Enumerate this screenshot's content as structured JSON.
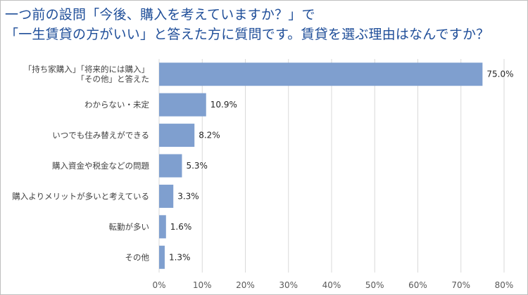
{
  "title": {
    "line1": "一つ前の設問「今後、購入を考えていますか？」で",
    "line2": "「一生賃貸の方がいい」と答えた方に質問です。賃貸を選ぶ理由はなんですか？"
  },
  "colors": {
    "title": "#1f4e99",
    "bar": "#7f9fcf",
    "gridline": "#d9d9d9"
  },
  "chart_data": {
    "type": "bar",
    "orientation": "horizontal",
    "title": "一つ前の設問「今後、購入を考えていますか？」で「一生賃貸の方がいい」と答えた方に質問です。賃貸を選ぶ理由はなんですか？",
    "categories": [
      [
        "「持ち家購入」「将来的には購入」",
        "「その他」と答えた"
      ],
      [
        "わからない・未定"
      ],
      [
        "いつでも住み替えができる"
      ],
      [
        "購入資金や税金などの問題"
      ],
      [
        "購入よりメリットが多いと考えている"
      ],
      [
        "転勤が多い"
      ],
      [
        "その他"
      ]
    ],
    "values": [
      75.0,
      10.9,
      8.2,
      5.3,
      3.3,
      1.6,
      1.3
    ],
    "value_labels": [
      "75.0%",
      "10.9%",
      "8.2%",
      "5.3%",
      "3.3%",
      "1.6%",
      "1.3%"
    ],
    "xlim": [
      0,
      80
    ],
    "x_ticks": [
      0,
      10,
      20,
      30,
      40,
      50,
      60,
      70,
      80
    ],
    "x_tick_labels": [
      "0%",
      "10%",
      "20%",
      "30%",
      "40%",
      "50%",
      "60%",
      "70%",
      "80%"
    ],
    "grid": true,
    "legend": false
  }
}
